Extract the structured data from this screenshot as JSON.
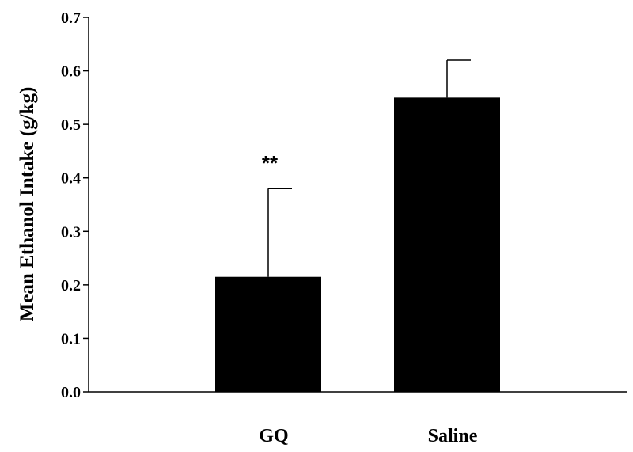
{
  "chart_data": {
    "type": "bar",
    "title": "",
    "xlabel": "",
    "ylabel": "Mean Ethanol Intake (g/kg)",
    "categories": [
      "GQ",
      "Saline"
    ],
    "values": [
      0.215,
      0.55
    ],
    "error_upper": [
      0.38,
      0.62
    ],
    "annotations": [
      "**",
      ""
    ],
    "ylim": [
      0,
      0.7
    ],
    "yticks": [
      "0.0",
      "0.1",
      "0.2",
      "0.3",
      "0.4",
      "0.5",
      "0.6",
      "0.7"
    ],
    "grid": false,
    "bar_color": "#000000"
  }
}
